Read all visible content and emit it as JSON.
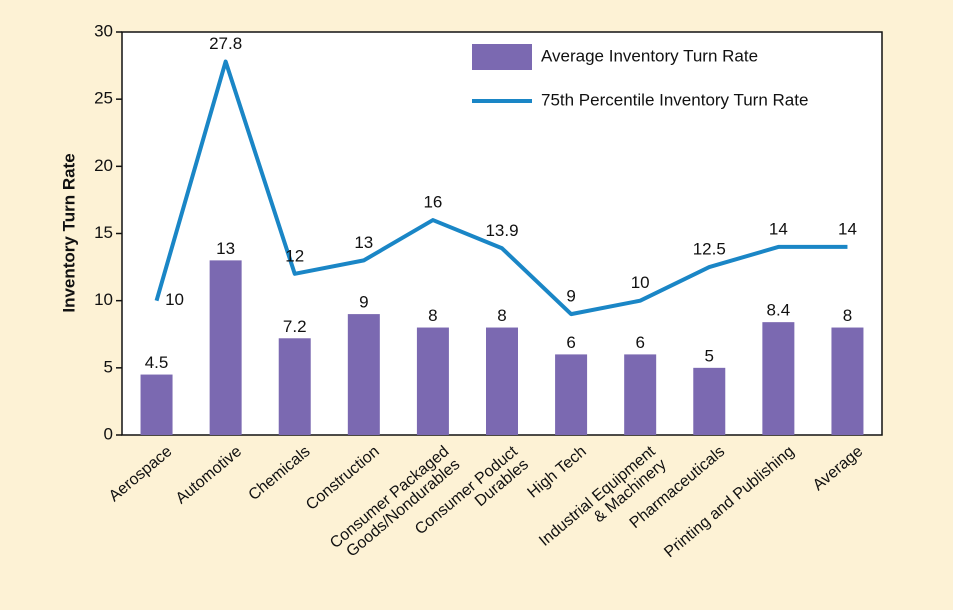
{
  "chart_data": {
    "type": "bar-line",
    "y_label": "Inventory Turn Rate",
    "categories": [
      "Aerospace",
      "Automotive",
      "Chemicals",
      "Construction",
      "Consumer Packaged\nGoods/Nondurables",
      "Consumer Poduct\nDurables",
      "High Tech",
      "Industrial Equipment\n& Machinery",
      "Pharmaceuticals",
      "Printing and Publishing",
      "Average"
    ],
    "series": [
      {
        "name": "Average Inventory Turn Rate",
        "type": "bar",
        "color": "#7b69b1",
        "values": [
          4.5,
          13,
          7.2,
          9,
          8,
          8,
          6,
          6,
          5,
          8.4,
          8
        ]
      },
      {
        "name": "75th Percentile Inventory Turn Rate",
        "type": "line",
        "color": "#1a86c6",
        "values": [
          10,
          27.8,
          12,
          13,
          16,
          13.9,
          9,
          10,
          12.5,
          14,
          14
        ]
      }
    ],
    "ylim": [
      0,
      30
    ],
    "yticks": [
      0,
      5,
      10,
      15,
      20,
      25,
      30
    ],
    "legend": "upper right"
  }
}
